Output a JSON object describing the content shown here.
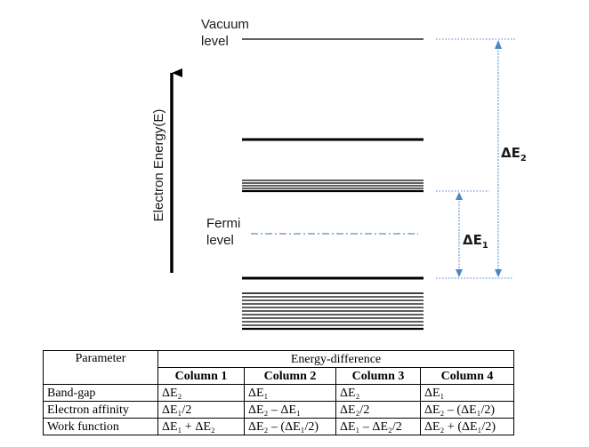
{
  "diagram": {
    "axis_label": "Electron Energy(E)",
    "vacuum_label_line1": "Vacuum",
    "vacuum_label_line2": "level",
    "fermi_label_line1": "Fermi",
    "fermi_label_line2": "level",
    "delta_e1": "ΔE",
    "delta_e1_sub": "1",
    "delta_e2": "ΔE",
    "delta_e2_sub": "2",
    "colors": {
      "levels": "#000000",
      "fermi_line": "#3a6fb0",
      "delta_arrows": "#4a86c8"
    }
  },
  "table": {
    "parameter_header": "Parameter",
    "group_header": "Energy-difference",
    "columns": [
      "Column 1",
      "Column 2",
      "Column 3",
      "Column 4"
    ],
    "rows": [
      {
        "parameter": "Band-gap",
        "values": [
          "ΔE₂",
          "ΔE₁",
          "ΔE₂",
          "ΔE₁"
        ]
      },
      {
        "parameter": "Electron affinity",
        "values": [
          "ΔE₁/2",
          "ΔE₂ – ΔE₁",
          "ΔE₂/2",
          "ΔE₂ – (ΔE₁/2)"
        ]
      },
      {
        "parameter": "Work function",
        "values": [
          "ΔE₁ + ΔE₂",
          "ΔE₂ – (ΔE₁/2)",
          "ΔE₁ – ΔE₂/2",
          "ΔE₂ + (ΔE₁/2)"
        ]
      }
    ]
  }
}
